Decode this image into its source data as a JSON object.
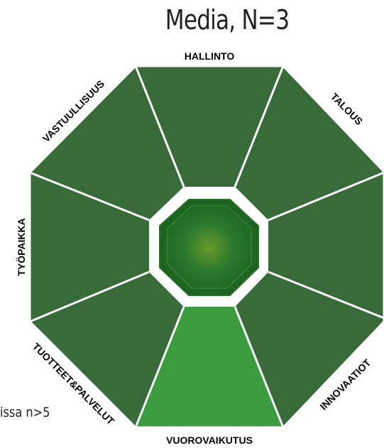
{
  "title": "Media, N=3",
  "footnote": "issa n>5",
  "colors": {
    "segment_default": "#386a3a",
    "segment_highlight": "#3d9b3f",
    "separator": "#ffffff",
    "center_outer": "#2d6e2f",
    "center_inner": "#1f6a24",
    "center_glow": "#6a9a2c"
  },
  "segments": [
    {
      "key": "hallinto",
      "label": "HALLINTO",
      "highlighted": false
    },
    {
      "key": "talous",
      "label": "TALOUS",
      "highlighted": false
    },
    {
      "key": "tyopaikka_right",
      "label": "",
      "highlighted": false
    },
    {
      "key": "innovaatiot",
      "label": "INNOVAATIOT",
      "highlighted": false
    },
    {
      "key": "vuorovaikutus",
      "label": "VUOROVAIKUTUS",
      "highlighted": true
    },
    {
      "key": "tuotteet",
      "label": "TUOTTEET&PALVELUT",
      "highlighted": false
    },
    {
      "key": "tyopaikka",
      "label": "TYÖPAIKKA",
      "highlighted": false
    },
    {
      "key": "vastuullisuus",
      "label": "VASTUULLISUUS",
      "highlighted": false
    }
  ]
}
